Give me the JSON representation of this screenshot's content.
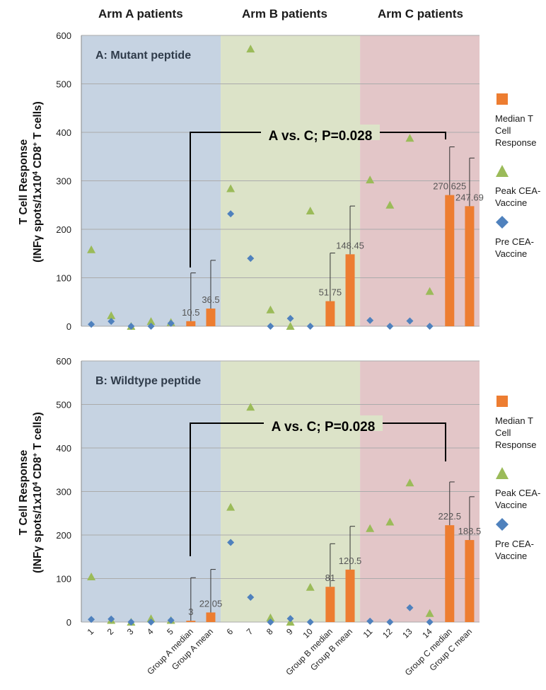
{
  "headers": [
    "Arm A patients",
    "Arm B patients",
    "Arm C patients"
  ],
  "ylabel_line1": "T Cell Response",
  "ylabel_line2_pre": "(INF",
  "ylabel_line2_gamma": "γ",
  "ylabel_line2_mid": " spots/1x10",
  "ylabel_line2_sup1": "4",
  "ylabel_line2_cd8": " CD8",
  "ylabel_line2_sup2": "+",
  "ylabel_line2_post": " T cells)",
  "legend": [
    {
      "label": "Median T Cell Response",
      "color": "#ed7d31",
      "icon": "square-icon"
    },
    {
      "label": "Peak CEA-Vaccine",
      "color": "#9bbb59",
      "icon": "triangle-icon"
    },
    {
      "label": "Pre CEA-Vaccine",
      "color": "#4f81bd",
      "icon": "diamond-icon"
    }
  ],
  "colors": {
    "armA_bg": "#c6d3e2",
    "armB_bg": "#dce3c8",
    "armC_bg": "#e3c6c8",
    "bar": "#ed7d31",
    "peak": "#9bbb59",
    "pre": "#4f81bd",
    "grid": "#ababab"
  },
  "chart_data": [
    {
      "type": "bar",
      "title": "A: Mutant peptide",
      "annotation": "A vs. C; P=0.028",
      "categories": [
        "1",
        "2",
        "3",
        "4",
        "5",
        "Group A median",
        "Group A mean",
        "6",
        "7",
        "8",
        "9",
        "10",
        "Group B median",
        "Group B mean",
        "11",
        "12",
        "13",
        "14",
        "Group C median",
        "Group C mean"
      ],
      "ylim": [
        0,
        600
      ],
      "yticks": [
        0,
        100,
        200,
        300,
        400,
        500,
        600
      ],
      "bars": [
        {
          "category": "Group A median",
          "value": 10.5,
          "error_top": 110,
          "label": "10.5"
        },
        {
          "category": "Group A mean",
          "value": 36.5,
          "error_top": 136,
          "label": "36.5"
        },
        {
          "category": "Group B median",
          "value": 51.75,
          "error_top": 151,
          "label": "51.75"
        },
        {
          "category": "Group B mean",
          "value": 148.45,
          "error_top": 248,
          "label": "148.45"
        },
        {
          "category": "Group C median",
          "value": 270.625,
          "error_top": 370,
          "label": "270.625"
        },
        {
          "category": "Group C mean",
          "value": 247.69,
          "error_top": 347,
          "label": "247.69"
        }
      ],
      "series": [
        {
          "name": "Peak CEA-Vaccine",
          "marker": "triangle",
          "points": [
            [
              "1",
              158
            ],
            [
              "2",
              22
            ],
            [
              "3",
              0
            ],
            [
              "4",
              10
            ],
            [
              "5",
              8
            ],
            [
              "6",
              284
            ],
            [
              "7",
              572
            ],
            [
              "8",
              34
            ],
            [
              "9",
              0
            ],
            [
              "10",
              238
            ],
            [
              "11",
              302
            ],
            [
              "12",
              250
            ],
            [
              "13",
              388
            ],
            [
              "14",
              72
            ]
          ]
        },
        {
          "name": "Pre CEA-Vaccine",
          "marker": "diamond",
          "points": [
            [
              "1",
              4
            ],
            [
              "2",
              10
            ],
            [
              "3",
              0
            ],
            [
              "4",
              0
            ],
            [
              "5",
              6
            ],
            [
              "6",
              232
            ],
            [
              "7",
              140
            ],
            [
              "8",
              0
            ],
            [
              "9",
              16
            ],
            [
              "10",
              0
            ],
            [
              "11",
              12
            ],
            [
              "12",
              0
            ],
            [
              "13",
              11
            ],
            [
              "14",
              0
            ]
          ]
        }
      ]
    },
    {
      "type": "bar",
      "title": "B: Wildtype peptide",
      "annotation": "A vs. C; P=0.028",
      "categories": [
        "1",
        "2",
        "3",
        "4",
        "5",
        "Group A median",
        "Group A mean",
        "6",
        "7",
        "8",
        "9",
        "10",
        "Group B median",
        "Group B mean",
        "11",
        "12",
        "13",
        "14",
        "Group C median",
        "Group C mean"
      ],
      "ylim": [
        0,
        600
      ],
      "yticks": [
        0,
        100,
        200,
        300,
        400,
        500,
        600
      ],
      "bars": [
        {
          "category": "Group A median",
          "value": 3,
          "error_top": 102,
          "label": "3"
        },
        {
          "category": "Group A mean",
          "value": 22.05,
          "error_top": 121,
          "label": "22.05"
        },
        {
          "category": "Group B median",
          "value": 81,
          "error_top": 180,
          "label": "81"
        },
        {
          "category": "Group B mean",
          "value": 120.5,
          "error_top": 220,
          "label": "120.5"
        },
        {
          "category": "Group C median",
          "value": 222.5,
          "error_top": 322,
          "label": "222.5"
        },
        {
          "category": "Group C mean",
          "value": 188.5,
          "error_top": 288,
          "label": "188.5"
        }
      ],
      "series": [
        {
          "name": "Peak CEA-Vaccine",
          "marker": "triangle",
          "points": [
            [
              "1",
              104
            ],
            [
              "2",
              4
            ],
            [
              "3",
              0
            ],
            [
              "4",
              8
            ],
            [
              "5",
              4
            ],
            [
              "6",
              264
            ],
            [
              "7",
              494
            ],
            [
              "8",
              10
            ],
            [
              "9",
              0
            ],
            [
              "10",
              80
            ],
            [
              "11",
              215
            ],
            [
              "12",
              230
            ],
            [
              "13",
              320
            ],
            [
              "14",
              20
            ]
          ]
        },
        {
          "name": "Pre CEA-Vaccine",
          "marker": "diamond",
          "points": [
            [
              "1",
              6
            ],
            [
              "2",
              7
            ],
            [
              "3",
              0
            ],
            [
              "4",
              0
            ],
            [
              "5",
              4
            ],
            [
              "6",
              183
            ],
            [
              "7",
              57
            ],
            [
              "8",
              0
            ],
            [
              "9",
              8
            ],
            [
              "10",
              0
            ],
            [
              "11",
              2
            ],
            [
              "12",
              0
            ],
            [
              "13",
              33
            ],
            [
              "14",
              0
            ]
          ]
        }
      ]
    }
  ]
}
